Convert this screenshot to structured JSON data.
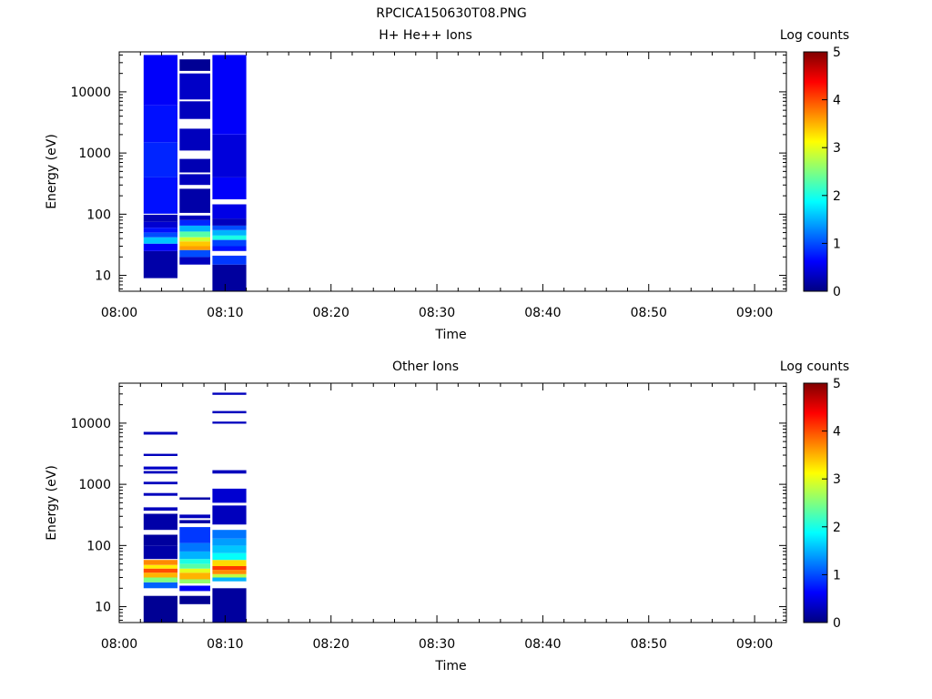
{
  "figure_title": "RPCICA150630T08.PNG",
  "chart_data": [
    {
      "type": "heatmap",
      "title": "H+ He++ Ions",
      "xlabel": "Time",
      "ylabel": "Energy (eV)",
      "colorbar_label": "Log counts",
      "colorbar_ticks": [
        "0",
        "1",
        "2",
        "3",
        "4",
        "5"
      ],
      "colorbar_range": [
        0,
        5
      ],
      "x_ticks": [
        "08:00",
        "08:10",
        "08:20",
        "08:30",
        "08:40",
        "08:50",
        "09:00"
      ],
      "y_ticks": [
        "10",
        "100",
        "1000",
        "10000"
      ],
      "y_scale": "log",
      "ylim": [
        5.5,
        45000
      ],
      "xlim": [
        "08:00",
        "09:03"
      ],
      "columns": [
        {
          "t_start": "08:02.3",
          "t_end": "08:05.5",
          "bands": [
            [
              9,
              25,
              0.2
            ],
            [
              25,
              33,
              0.6
            ],
            [
              33,
              42,
              1.6
            ],
            [
              42,
              50,
              1.0
            ],
            [
              50,
              60,
              0.7
            ],
            [
              60,
              75,
              0.4
            ],
            [
              75,
              98,
              0.25
            ],
            [
              102,
              400,
              0.7
            ],
            [
              400,
              1500,
              0.8
            ],
            [
              1500,
              6000,
              0.7
            ],
            [
              6000,
              40000,
              0.6
            ]
          ]
        },
        {
          "t_start": "08:05.7",
          "t_end": "08:08.6",
          "bands": [
            [
              15,
              20,
              0.3
            ],
            [
              20,
              26,
              1.0
            ],
            [
              26,
              30,
              3.6
            ],
            [
              30,
              36,
              3.4
            ],
            [
              36,
              42,
              2.9
            ],
            [
              42,
              52,
              2.3
            ],
            [
              52,
              65,
              1.5
            ],
            [
              65,
              80,
              0.8
            ],
            [
              80,
              95,
              0.3
            ],
            [
              105,
              260,
              0.2
            ],
            [
              300,
              450,
              0.3
            ],
            [
              480,
              800,
              0.25
            ],
            [
              1100,
              2500,
              0.3
            ],
            [
              3600,
              7000,
              0.3
            ],
            [
              7500,
              20000,
              0.35
            ],
            [
              22000,
              34000,
              0.1
            ]
          ]
        },
        {
          "t_start": "08:08.8",
          "t_end": "08:12.0",
          "bands": [
            [
              5.5,
              15,
              0.15
            ],
            [
              15,
              21,
              0.9
            ],
            [
              25,
              30,
              0.7
            ],
            [
              30,
              38,
              0.95
            ],
            [
              38,
              45,
              2.0
            ],
            [
              45,
              55,
              1.5
            ],
            [
              55,
              65,
              1.0
            ],
            [
              65,
              85,
              0.3
            ],
            [
              85,
              145,
              0.5
            ],
            [
              175,
              400,
              0.6
            ],
            [
              400,
              2000,
              0.45
            ],
            [
              2000,
              40000,
              0.6
            ]
          ]
        }
      ]
    },
    {
      "type": "heatmap",
      "title": "Other Ions",
      "xlabel": "Time",
      "ylabel": "Energy (eV)",
      "colorbar_label": "Log counts",
      "colorbar_ticks": [
        "0",
        "1",
        "2",
        "3",
        "4",
        "5"
      ],
      "colorbar_range": [
        0,
        5
      ],
      "x_ticks": [
        "08:00",
        "08:10",
        "08:20",
        "08:30",
        "08:40",
        "08:50",
        "09:00"
      ],
      "y_ticks": [
        "10",
        "100",
        "1000",
        "10000"
      ],
      "y_scale": "log",
      "ylim": [
        5.5,
        45000
      ],
      "xlim": [
        "08:00",
        "09:03"
      ],
      "columns": [
        {
          "t_start": "08:02.3",
          "t_end": "08:05.5",
          "bands": [
            [
              5.5,
              15,
              0.1
            ],
            [
              20,
              25,
              1.1
            ],
            [
              25,
              30,
              2.5
            ],
            [
              30,
              36,
              3.5
            ],
            [
              36,
              42,
              4.0
            ],
            [
              42,
              48,
              3.2
            ],
            [
              48,
              58,
              3.7
            ],
            [
              60,
              100,
              0.2
            ],
            [
              100,
              150,
              0.15
            ],
            [
              180,
              330,
              0.2
            ],
            [
              370,
              420,
              0.3
            ],
            [
              650,
              720,
              0.3
            ],
            [
              1000,
              1100,
              0.3
            ],
            [
              1500,
              1650,
              0.3
            ],
            [
              1750,
              1950,
              0.35
            ],
            [
              2900,
              3150,
              0.3
            ],
            [
              6500,
              7200,
              0.3
            ]
          ]
        },
        {
          "t_start": "08:05.7",
          "t_end": "08:08.6",
          "bands": [
            [
              11,
              15,
              0.1
            ],
            [
              18,
              22,
              0.6
            ],
            [
              24,
              28,
              2.6
            ],
            [
              28,
              36,
              3.5
            ],
            [
              36,
              42,
              3.0
            ],
            [
              42,
              50,
              2.3
            ],
            [
              50,
              60,
              2.0
            ],
            [
              60,
              80,
              1.5
            ],
            [
              80,
              110,
              1.2
            ],
            [
              110,
              200,
              0.9
            ],
            [
              230,
              260,
              0.2
            ],
            [
              280,
              320,
              0.3
            ],
            [
              560,
              610,
              0.2
            ]
          ]
        },
        {
          "t_start": "08:08.8",
          "t_end": "08:12.0",
          "bands": [
            [
              5.5,
              20,
              0.15
            ],
            [
              26,
              30,
              1.5
            ],
            [
              30,
              34,
              2.8
            ],
            [
              34,
              40,
              3.7
            ],
            [
              40,
              46,
              4.1
            ],
            [
              46,
              58,
              3.3
            ],
            [
              58,
              75,
              1.9
            ],
            [
              75,
              100,
              1.6
            ],
            [
              100,
              130,
              1.4
            ],
            [
              130,
              180,
              1.2
            ],
            [
              220,
              450,
              0.3
            ],
            [
              500,
              850,
              0.4
            ],
            [
              1500,
              1700,
              0.3
            ],
            [
              9800,
              10600,
              0.3
            ],
            [
              14500,
              15800,
              0.3
            ],
            [
              29000,
              31500,
              0.3
            ]
          ]
        }
      ]
    }
  ]
}
